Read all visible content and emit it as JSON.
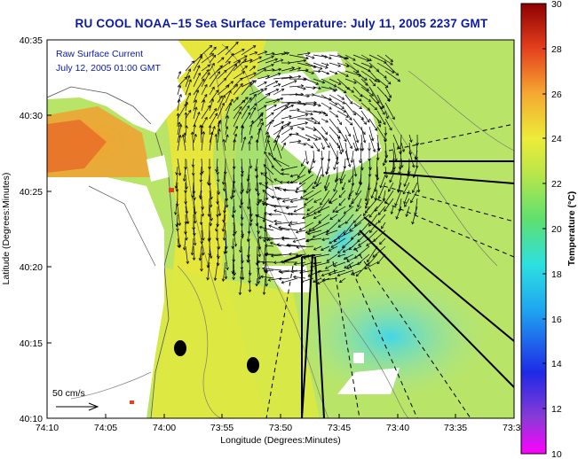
{
  "title": "RU COOL  NOAA−15  Sea Surface Temperature:  July 11, 2005 2237 GMT",
  "annotation": {
    "line1": "Raw Surface Current",
    "line2": "July 12, 2005 01:00 GMT"
  },
  "scale_arrow_label": "50 cm/s",
  "x_axis": {
    "label": "Longitude (Degrees:Minutes)",
    "ticks": [
      "74:10",
      "74:05",
      "74:00",
      "73:55",
      "73:50",
      "73:45",
      "73:40",
      "73:35",
      "73:3"
    ]
  },
  "y_axis": {
    "label": "Latitude (Degrees:Minutes)",
    "ticks": [
      "40:35",
      "40:30",
      "40:25",
      "40:20",
      "40:15",
      "40:10"
    ]
  },
  "colorbar": {
    "label": "Temperature (°C)",
    "ticks": [
      "30",
      "28",
      "26",
      "24",
      "22",
      "20",
      "18",
      "16",
      "14",
      "12",
      "10"
    ]
  },
  "colors": {
    "title": "#0a1aa6",
    "warm": "#e8452a",
    "mid": "#d6e84a",
    "cool": "#66dcdc",
    "cloud": "#ffffff"
  }
}
